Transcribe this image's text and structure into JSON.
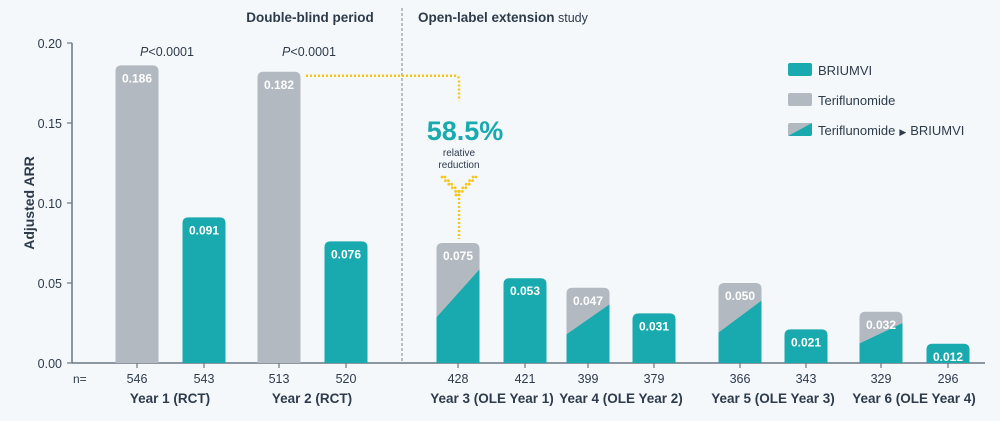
{
  "chart_data": {
    "type": "bar",
    "ylabel": "Adjusted ARR",
    "ylim": [
      0,
      0.2
    ],
    "yticks": [
      "0.00",
      "0.05",
      "0.10",
      "0.15",
      "0.20"
    ],
    "n_label": "n=",
    "periods": [
      {
        "label": "Double-blind period"
      },
      {
        "label_bold": "Open-label extension",
        "label_rest": " study"
      }
    ],
    "groups": [
      {
        "label": "Year 1 (RCT)",
        "pvalue_prefix": "P",
        "pvalue_rest": "<0.0001",
        "bars": [
          {
            "series": "Teriflunomide",
            "value": 0.186,
            "label": "0.186",
            "n": "546"
          },
          {
            "series": "BRIUMVI",
            "value": 0.091,
            "label": "0.091",
            "n": "543"
          }
        ]
      },
      {
        "label": "Year 2 (RCT)",
        "pvalue_prefix": "P",
        "pvalue_rest": "<0.0001",
        "bars": [
          {
            "series": "Teriflunomide",
            "value": 0.182,
            "label": "0.182",
            "n": "513"
          },
          {
            "series": "BRIUMVI",
            "value": 0.076,
            "label": "0.076",
            "n": "520"
          }
        ]
      },
      {
        "label": "Year 3 (OLE Year 1)",
        "bars": [
          {
            "series": "Teriflunomide ▸ BRIUMVI",
            "value": 0.075,
            "label": "0.075",
            "n": "428"
          },
          {
            "series": "BRIUMVI",
            "value": 0.053,
            "label": "0.053",
            "n": "421"
          }
        ]
      },
      {
        "label": "Year 4 (OLE Year 2)",
        "bars": [
          {
            "series": "Teriflunomide ▸ BRIUMVI",
            "value": 0.047,
            "label": "0.047",
            "n": "399"
          },
          {
            "series": "BRIUMVI",
            "value": 0.031,
            "label": "0.031",
            "n": "379"
          }
        ]
      },
      {
        "label": "Year 5 (OLE Year 3)",
        "bars": [
          {
            "series": "Teriflunomide ▸ BRIUMVI",
            "value": 0.05,
            "label": "0.050",
            "n": "366"
          },
          {
            "series": "BRIUMVI",
            "value": 0.021,
            "label": "0.021",
            "n": "343"
          }
        ]
      },
      {
        "label": "Year 6 (OLE Year 4)",
        "bars": [
          {
            "series": "Teriflunomide ▸ BRIUMVI",
            "value": 0.032,
            "label": "0.032",
            "n": "329"
          },
          {
            "series": "BRIUMVI",
            "value": 0.012,
            "label": "0.012",
            "n": "296"
          }
        ]
      }
    ],
    "legend": {
      "placement": "top-right",
      "items": [
        {
          "key": "BRIUMVI",
          "label": "BRIUMVI",
          "style": "solid-teal"
        },
        {
          "key": "Teriflunomide",
          "label": "Teriflunomide",
          "style": "solid-gray"
        },
        {
          "key": "Teriflunomide ▸ BRIUMVI",
          "label_a": "Teriflunomide",
          "label_b": "BRIUMVI",
          "style": "split"
        }
      ]
    },
    "annotation": {
      "value_text": "58.5%",
      "line1": "relative",
      "line2": "reduction",
      "from": "Year 2 Teriflunomide (0.182)",
      "to": "Year 3 Teriflunomide ▸ BRIUMVI (0.075)"
    }
  },
  "colors": {
    "briumvi": "#18aaae",
    "teriflunomide": "#b3b9c0",
    "annotation": "#f5c518",
    "annotation_text": "#18aaae",
    "axis": "#6b7784",
    "text": "#2e3b4b",
    "background": "#f4f8fb"
  }
}
